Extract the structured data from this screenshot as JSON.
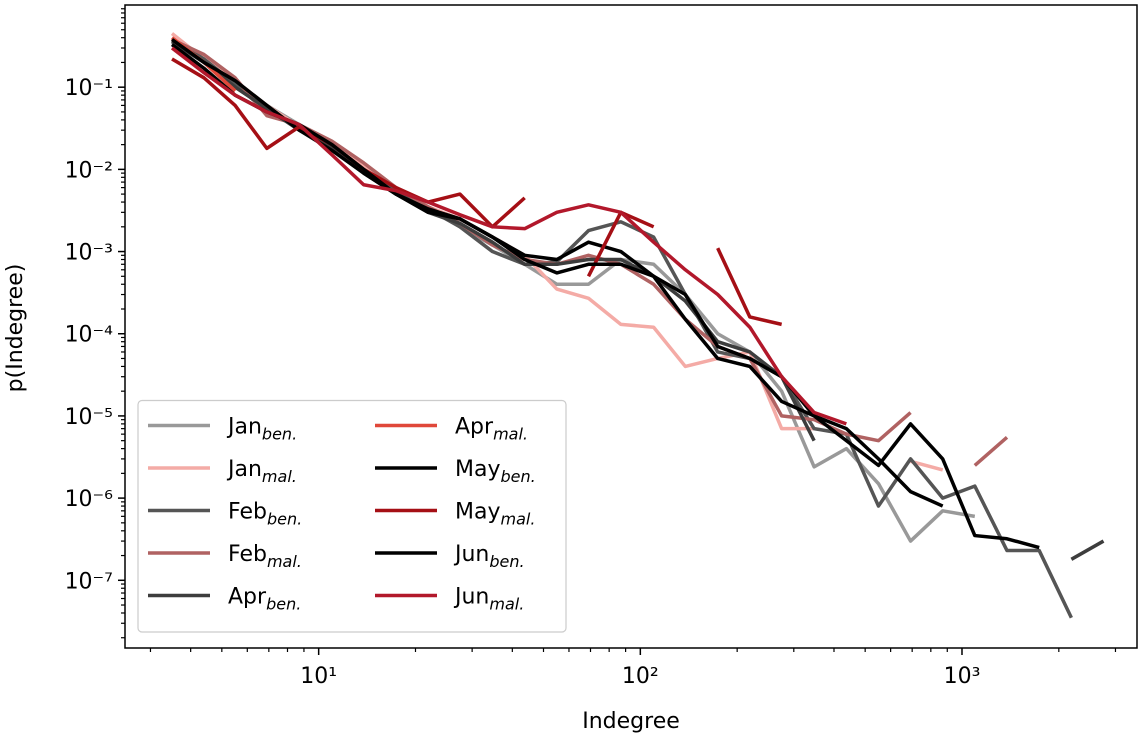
{
  "chart_data": {
    "type": "line",
    "xlabel": "Indegree",
    "ylabel": "p(Indegree)",
    "xscale": "log",
    "yscale": "log",
    "xlim": [
      2.5,
      3500
    ],
    "ylim": [
      1.5e-08,
      1
    ],
    "xticks": [
      {
        "value": 10,
        "label": "10¹"
      },
      {
        "value": 100,
        "label": "10²"
      },
      {
        "value": 1000,
        "label": "10³"
      }
    ],
    "yticks": [
      {
        "value": 1e-07,
        "label": "10⁻⁷"
      },
      {
        "value": 1e-06,
        "label": "10⁻⁶"
      },
      {
        "value": 1e-05,
        "label": "10⁻⁵"
      },
      {
        "value": 0.0001,
        "label": "10⁻⁴"
      },
      {
        "value": 0.001,
        "label": "10⁻³"
      },
      {
        "value": 0.01,
        "label": "10⁻²"
      },
      {
        "value": 0.1,
        "label": "10⁻¹"
      }
    ],
    "xticks_minor": [
      3,
      4,
      5,
      6,
      7,
      8,
      9,
      20,
      30,
      40,
      50,
      60,
      70,
      80,
      90,
      200,
      300,
      400,
      500,
      600,
      700,
      800,
      900,
      2000,
      3000
    ],
    "yticks_minor": [
      2e-08,
      3e-08,
      4e-08,
      5e-08,
      6e-08,
      7e-08,
      8e-08,
      9e-08,
      2e-07,
      3e-07,
      4e-07,
      5e-07,
      6e-07,
      7e-07,
      8e-07,
      9e-07,
      2e-06,
      3e-06,
      4e-06,
      5e-06,
      6e-06,
      7e-06,
      8e-06,
      9e-06,
      2e-05,
      3e-05,
      4e-05,
      5e-05,
      6e-05,
      7e-05,
      8e-05,
      9e-05,
      0.0002,
      0.0003,
      0.0004,
      0.0005,
      0.0006,
      0.0007,
      0.0008,
      0.0009,
      0.002,
      0.003,
      0.004,
      0.005,
      0.006,
      0.007,
      0.008,
      0.009,
      0.02,
      0.03,
      0.04,
      0.05,
      0.06,
      0.07,
      0.08,
      0.09,
      0.2,
      0.3,
      0.4,
      0.5,
      0.6,
      0.7,
      0.8,
      0.9
    ],
    "legend": "lower left",
    "x": [
      3.5,
      4.4,
      5.5,
      6.9,
      8.7,
      11,
      13.8,
      17.4,
      21.9,
      27.5,
      34.7,
      43.7,
      55,
      69,
      87,
      110,
      138,
      174,
      219,
      275,
      347,
      437,
      550,
      692,
      871,
      1096,
      1380,
      1738,
      2188,
      2754
    ],
    "series": [
      {
        "name": "Jan",
        "name_sub": "ben.",
        "color": "#999999",
        "values": [
          0.35,
          0.2,
          0.1,
          0.06,
          0.035,
          0.02,
          0.011,
          0.006,
          0.0035,
          0.002,
          0.0012,
          0.0007,
          0.0004,
          0.0004,
          0.0008,
          0.0007,
          0.0003,
          0.0001,
          6e-05,
          2e-05,
          2.4e-06,
          4e-06,
          1.5e-06,
          3e-07,
          7e-07,
          6e-07,
          null,
          null,
          null,
          null
        ]
      },
      {
        "name": "Jan",
        "name_sub": "mal.",
        "color": "#f4aba6",
        "values": [
          0.45,
          0.22,
          0.12,
          0.06,
          0.033,
          0.02,
          0.011,
          0.006,
          0.0035,
          0.0025,
          0.0015,
          0.0009,
          0.00035,
          0.00027,
          0.00013,
          0.00012,
          4e-05,
          5e-05,
          6e-05,
          7e-06,
          7e-06,
          null,
          null,
          2.8e-06,
          2.2e-06,
          null,
          null,
          null,
          null,
          null
        ]
      },
      {
        "name": "Feb",
        "name_sub": "ben.",
        "color": "#555555",
        "values": [
          0.38,
          0.22,
          0.11,
          0.05,
          0.033,
          0.02,
          0.01,
          0.0055,
          0.0033,
          0.002,
          0.001,
          0.0007,
          0.00075,
          0.0018,
          0.0023,
          0.0015,
          0.0003,
          6e-05,
          5e-05,
          3e-05,
          7e-06,
          6e-06,
          8e-07,
          3e-06,
          1e-06,
          1.4e-06,
          2.3e-07,
          2.3e-07,
          3.5e-08,
          null
        ]
      },
      {
        "name": "Feb",
        "name_sub": "mal.",
        "color": "#b06262",
        "values": [
          0.38,
          0.25,
          0.13,
          0.045,
          0.035,
          0.022,
          0.012,
          0.006,
          0.0035,
          0.0022,
          0.0012,
          0.0008,
          0.0007,
          0.0009,
          0.0007,
          0.0004,
          0.00015,
          7e-05,
          5e-05,
          1e-05,
          9e-06,
          6e-06,
          5e-06,
          1.1e-05,
          null,
          2.5e-06,
          5.5e-06,
          null,
          null,
          null
        ]
      },
      {
        "name": "Apr",
        "name_sub": "ben.",
        "color": "#3d3d3d",
        "values": [
          0.36,
          0.2,
          0.1,
          0.055,
          0.03,
          0.018,
          0.009,
          0.005,
          0.003,
          0.0022,
          0.0013,
          0.0007,
          0.0007,
          0.0008,
          0.0008,
          0.0005,
          0.00025,
          8e-05,
          6e-05,
          3e-05,
          5e-06,
          null,
          null,
          null,
          null,
          null,
          null,
          null,
          1.8e-07,
          3e-07
        ]
      },
      {
        "name": "Apr",
        "name_sub": "mal.",
        "color": "#e0483a",
        "values": [
          0.4,
          0.2,
          0.09,
          null,
          null,
          null,
          null,
          null,
          null,
          null,
          null,
          null,
          null,
          null,
          null,
          null,
          null,
          null,
          null,
          null,
          null,
          null,
          null,
          null,
          null,
          null,
          null,
          null,
          null,
          null
        ]
      },
      {
        "name": "May",
        "name_sub": "ben.",
        "color": "#000000",
        "values": [
          0.38,
          0.2,
          0.12,
          0.06,
          0.03,
          0.017,
          0.009,
          0.005,
          0.003,
          0.0025,
          0.0015,
          0.0009,
          0.0008,
          0.0013,
          0.001,
          0.0005,
          0.0003,
          7e-05,
          5e-05,
          3e-05,
          1e-05,
          7e-06,
          3e-06,
          1.2e-06,
          8e-07,
          null,
          null,
          null,
          null,
          null
        ]
      },
      {
        "name": "May",
        "name_sub": "mal.",
        "color": "#a50f15",
        "values": [
          0.22,
          0.13,
          0.06,
          0.018,
          0.033,
          0.02,
          0.01,
          0.006,
          0.004,
          0.005,
          0.002,
          0.0045,
          null,
          0.0005,
          0.003,
          0.002,
          null,
          0.0011,
          0.00016,
          0.00013,
          null,
          null,
          null,
          null,
          null,
          null,
          null,
          null,
          null,
          null
        ]
      },
      {
        "name": "Jun",
        "name_sub": "ben.",
        "color": "#000000",
        "values": [
          0.33,
          0.17,
          0.08,
          0.05,
          0.035,
          0.02,
          0.01,
          0.005,
          0.0033,
          0.0025,
          0.0015,
          0.0008,
          0.00055,
          0.0007,
          0.0007,
          0.0005,
          0.00015,
          5e-05,
          4e-05,
          1.5e-05,
          1e-05,
          5e-06,
          2.5e-06,
          8e-06,
          3e-06,
          3.5e-07,
          3.2e-07,
          2.5e-07,
          null,
          null
        ]
      },
      {
        "name": "Jun",
        "name_sub": "mal.",
        "color": "#b2182b",
        "values": [
          0.3,
          0.15,
          0.08,
          0.05,
          0.035,
          0.015,
          0.0065,
          0.0055,
          0.004,
          0.0028,
          0.002,
          0.0019,
          0.003,
          0.0037,
          0.003,
          0.0013,
          0.0006,
          0.0003,
          0.00012,
          3e-05,
          1.1e-05,
          8e-06,
          null,
          null,
          null,
          null,
          null,
          null,
          null,
          null
        ]
      }
    ]
  }
}
